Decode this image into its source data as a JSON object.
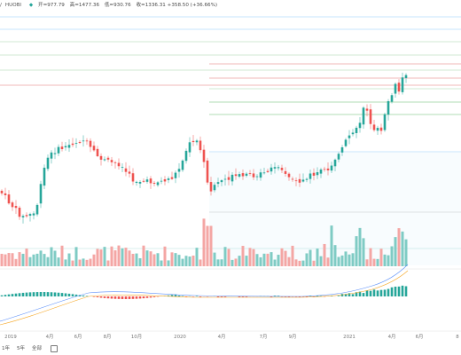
{
  "legend": {
    "prefix": "/",
    "exchange": "HUOBI",
    "marker": "◆",
    "open": "开=977.79",
    "high": "高=1477.36",
    "low": "低=930.76",
    "close": "收=1336.31 +358.50 (+36.66%)"
  },
  "x_axis": {
    "labels": [
      "2019",
      "4月",
      "6月",
      "8月",
      "10月",
      "2020",
      "4月",
      "7月",
      "9月",
      "2021",
      "4月",
      "6月",
      "8"
    ]
  },
  "toolbar": {
    "range_1": "1年",
    "range_2": "5年",
    "range_3": "全部",
    "calendar_icon": "calendar-icon"
  },
  "colors": {
    "up": "#26a69a",
    "down": "#ef5350",
    "up_volume": "#7fcbc4",
    "down_volume": "#f4a6a4",
    "ma_blue": "#5b8ff9",
    "ma_orange": "#f5a623",
    "fib_red": "#e57373",
    "fib_green": "#66bb6a",
    "fib_blue": "#64b5f6",
    "fib_gray": "#bbbbbb"
  },
  "chart_data": {
    "type": "candlestick",
    "title": "",
    "volume": true,
    "macd": true,
    "x_ticks": [
      "2019",
      "4月",
      "6月",
      "8月",
      "10月",
      "2020",
      "4月",
      "7月",
      "9月",
      "2021",
      "4月",
      "6月",
      "8"
    ]
  }
}
